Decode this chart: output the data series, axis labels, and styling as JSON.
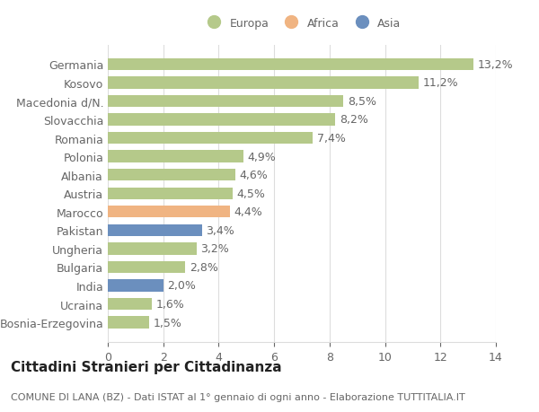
{
  "countries": [
    "Bosnia-Erzegovina",
    "Ucraina",
    "India",
    "Bulgaria",
    "Ungheria",
    "Pakistan",
    "Marocco",
    "Austria",
    "Albania",
    "Polonia",
    "Romania",
    "Slovacchia",
    "Macedonia d/N.",
    "Kosovo",
    "Germania"
  ],
  "values": [
    1.5,
    1.6,
    2.0,
    2.8,
    3.2,
    3.4,
    4.4,
    4.5,
    4.6,
    4.9,
    7.4,
    8.2,
    8.5,
    11.2,
    13.2
  ],
  "labels": [
    "1,5%",
    "1,6%",
    "2,0%",
    "2,8%",
    "3,2%",
    "3,4%",
    "4,4%",
    "4,5%",
    "4,6%",
    "4,9%",
    "7,4%",
    "8,2%",
    "8,5%",
    "11,2%",
    "13,2%"
  ],
  "continents": [
    "Europa",
    "Europa",
    "Asia",
    "Europa",
    "Europa",
    "Asia",
    "Africa",
    "Europa",
    "Europa",
    "Europa",
    "Europa",
    "Europa",
    "Europa",
    "Europa",
    "Europa"
  ],
  "color_europa": "#b5c98a",
  "color_africa": "#f0b482",
  "color_asia": "#6b8fbe",
  "title": "Cittadini Stranieri per Cittadinanza",
  "subtitle": "COMUNE DI LANA (BZ) - Dati ISTAT al 1° gennaio di ogni anno - Elaborazione TUTTITALIA.IT",
  "xlim": [
    0,
    14
  ],
  "xticks": [
    0,
    2,
    4,
    6,
    8,
    10,
    12,
    14
  ],
  "background_color": "#ffffff",
  "grid_color": "#dddddd",
  "bar_height": 0.65,
  "label_fontsize": 9,
  "tick_fontsize": 9,
  "title_fontsize": 11,
  "subtitle_fontsize": 8,
  "text_color": "#666666"
}
